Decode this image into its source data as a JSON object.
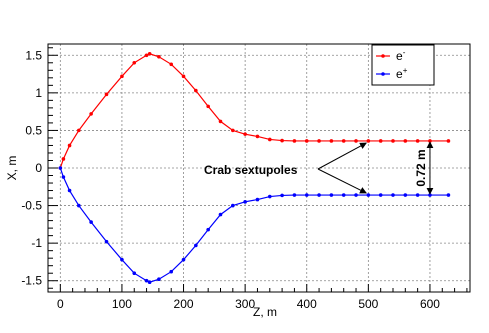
{
  "chart_data": {
    "type": "line",
    "xlabel": "Z, m",
    "ylabel": "X, m",
    "xlim": [
      -20,
      665
    ],
    "ylim": [
      -1.65,
      1.65
    ],
    "xticks": [
      "0",
      "100",
      "200",
      "300",
      "400",
      "500",
      "600"
    ],
    "yticks": [
      "1.5",
      "1",
      "0.5",
      "0",
      "-0.5",
      "-1",
      "-1.5"
    ],
    "grid": true,
    "legend_position": "top-right",
    "series": [
      {
        "name": "e-",
        "color": "#ff0000",
        "x": [
          0,
          5,
          15,
          30,
          50,
          75,
          100,
          120,
          140,
          145,
          160,
          180,
          200,
          220,
          240,
          260,
          280,
          300,
          320,
          340,
          360,
          380,
          400,
          420,
          440,
          460,
          480,
          500,
          520,
          540,
          560,
          580,
          600,
          630
        ],
        "y": [
          0,
          0.12,
          0.3,
          0.5,
          0.72,
          0.98,
          1.22,
          1.4,
          1.5,
          1.52,
          1.48,
          1.38,
          1.22,
          1.03,
          0.82,
          0.62,
          0.5,
          0.45,
          0.42,
          0.38,
          0.365,
          0.36,
          0.36,
          0.36,
          0.36,
          0.36,
          0.36,
          0.36,
          0.36,
          0.36,
          0.36,
          0.36,
          0.36,
          0.36
        ]
      },
      {
        "name": "e+",
        "color": "#0000ff",
        "x": [
          0,
          5,
          15,
          30,
          50,
          75,
          100,
          120,
          140,
          145,
          160,
          180,
          200,
          220,
          240,
          260,
          280,
          300,
          320,
          340,
          360,
          380,
          400,
          420,
          440,
          460,
          480,
          500,
          520,
          540,
          560,
          580,
          600,
          630
        ],
        "y": [
          0,
          -0.12,
          -0.3,
          -0.5,
          -0.72,
          -0.98,
          -1.22,
          -1.4,
          -1.5,
          -1.52,
          -1.48,
          -1.38,
          -1.22,
          -1.03,
          -0.82,
          -0.62,
          -0.5,
          -0.45,
          -0.42,
          -0.38,
          -0.365,
          -0.36,
          -0.36,
          -0.36,
          -0.36,
          -0.36,
          -0.36,
          -0.36,
          -0.36,
          -0.36,
          -0.36,
          -0.36,
          -0.36,
          -0.36
        ]
      }
    ],
    "legend": [
      {
        "base": "e",
        "sup": "-",
        "color": "#ff0000"
      },
      {
        "base": "e",
        "sup": "+",
        "color": "#0000ff"
      }
    ],
    "annotations": {
      "sextupoles_label": "Crab sextupoles",
      "separation_label": "0.72 m",
      "sextupole_z": 500,
      "separation_z": 600,
      "separation_y_top": 0.36,
      "separation_y_bottom": -0.36
    }
  }
}
